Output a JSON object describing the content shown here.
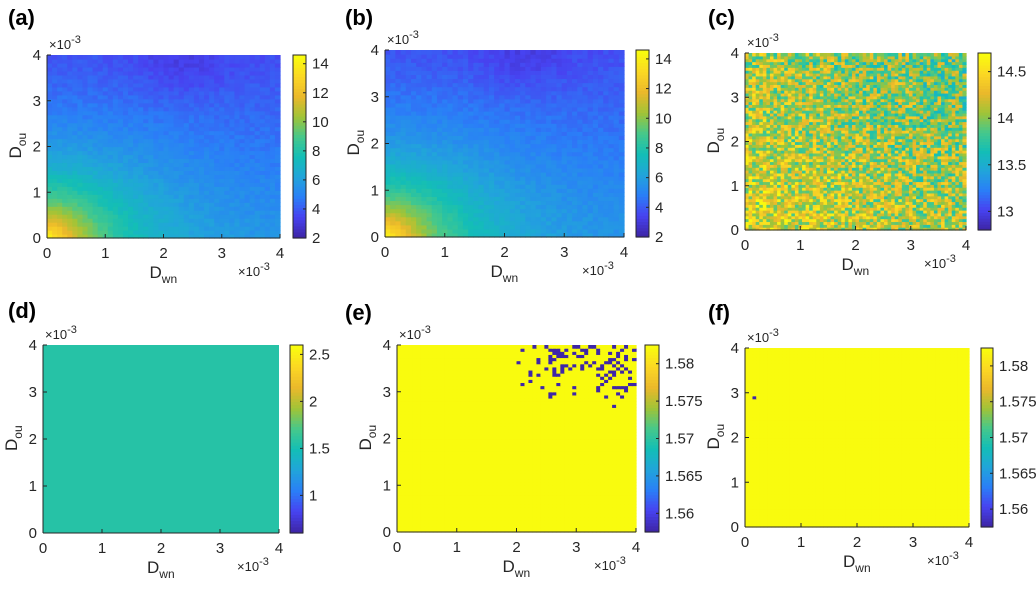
{
  "figure": {
    "panels": [
      {
        "label": "(a)",
        "xlabel_main": "D",
        "xlabel_sub": "wn",
        "ylabel_main": "D",
        "ylabel_sub": "ou",
        "x_multiplier": "×10",
        "x_exp": "-3",
        "y_multiplier": "×10",
        "y_exp": "-3"
      },
      {
        "label": "(b)",
        "xlabel_main": "D",
        "xlabel_sub": "wn",
        "ylabel_main": "D",
        "ylabel_sub": "ou",
        "x_multiplier": "×10",
        "x_exp": "-3",
        "y_multiplier": "×10",
        "y_exp": "-3"
      },
      {
        "label": "(c)",
        "xlabel_main": "D",
        "xlabel_sub": "wn",
        "ylabel_main": "D",
        "ylabel_sub": "ou",
        "x_multiplier": "×10",
        "x_exp": "-3",
        "y_multiplier": "×10",
        "y_exp": "-3"
      },
      {
        "label": "(d)",
        "xlabel_main": "D",
        "xlabel_sub": "wn",
        "ylabel_main": "D",
        "ylabel_sub": "ou",
        "x_multiplier": "×10",
        "x_exp": "-3",
        "y_multiplier": "×10",
        "y_exp": "-3"
      },
      {
        "label": "(e)",
        "xlabel_main": "D",
        "xlabel_sub": "wn",
        "ylabel_main": "D",
        "ylabel_sub": "ou",
        "x_multiplier": "×10",
        "x_exp": "-3",
        "y_multiplier": "×10",
        "y_exp": "-3"
      },
      {
        "label": "(f)",
        "xlabel_main": "D",
        "xlabel_sub": "wn",
        "ylabel_main": "D",
        "ylabel_sub": "ou",
        "x_multiplier": "×10",
        "x_exp": "-3",
        "y_multiplier": "×10",
        "y_exp": "-3"
      }
    ]
  },
  "colors": {
    "parula_stops": [
      "#3e26a8",
      "#4743f1",
      "#2a7ff7",
      "#21a5da",
      "#13beb6",
      "#46c88b",
      "#a0c437",
      "#eab82b",
      "#fbd724",
      "#f9fb0e"
    ]
  },
  "chart_data": [
    {
      "type": "heatmap",
      "panel": "(a)",
      "xlim": [
        0,
        4
      ],
      "ylim": [
        0,
        4
      ],
      "x_ticks": [
        "0",
        "1",
        "2",
        "3",
        "4"
      ],
      "y_ticks": [
        "0",
        "1",
        "2",
        "3",
        "4"
      ],
      "colorbar_ticks": [
        "2",
        "4",
        "6",
        "8",
        "10",
        "12",
        "14"
      ],
      "clim": [
        2,
        14.6
      ],
      "pattern": "gradient: highest (~13) near origin, decreasing to ~3 at top-middle"
    },
    {
      "type": "heatmap",
      "panel": "(b)",
      "xlim": [
        0,
        4
      ],
      "ylim": [
        0,
        4
      ],
      "x_ticks": [
        "0",
        "1",
        "2",
        "3",
        "4"
      ],
      "y_ticks": [
        "0",
        "1",
        "2",
        "3",
        "4"
      ],
      "colorbar_ticks": [
        "2",
        "4",
        "6",
        "8",
        "10",
        "12",
        "14"
      ],
      "clim": [
        2,
        14.6
      ],
      "pattern": "gradient: highest (~13) near origin, decreasing to ~3 at top-middle"
    },
    {
      "type": "heatmap",
      "panel": "(c)",
      "xlim": [
        0,
        4
      ],
      "ylim": [
        0,
        4
      ],
      "x_ticks": [
        "0",
        "1",
        "2",
        "3",
        "4"
      ],
      "y_ticks": [
        "0",
        "1",
        "2",
        "3",
        "4"
      ],
      "colorbar_ticks": [
        "13",
        "13.5",
        "14",
        "14.5"
      ],
      "clim": [
        12.8,
        14.7
      ],
      "pattern": "noisy, mostly ~14.3, lower (~13.6) toward top-right"
    },
    {
      "type": "heatmap",
      "panel": "(d)",
      "xlim": [
        0,
        4
      ],
      "ylim": [
        0,
        4
      ],
      "x_ticks": [
        "0",
        "1",
        "2",
        "3",
        "4"
      ],
      "y_ticks": [
        "0",
        "1",
        "2",
        "3",
        "4"
      ],
      "colorbar_ticks": [
        "1",
        "1.5",
        "2",
        "2.5"
      ],
      "clim": [
        0.6,
        2.6
      ],
      "pattern": "uniform ~1.57"
    },
    {
      "type": "heatmap",
      "panel": "(e)",
      "xlim": [
        0,
        4
      ],
      "ylim": [
        0,
        4
      ],
      "x_ticks": [
        "0",
        "1",
        "2",
        "3",
        "4"
      ],
      "y_ticks": [
        "0",
        "1",
        "2",
        "3",
        "4"
      ],
      "colorbar_ticks": [
        "1.56",
        "1.565",
        "1.57",
        "1.575",
        "1.58"
      ],
      "clim": [
        1.5575,
        1.5825
      ],
      "pattern": "uniform ~1.5825, scattered low-value (~1.5575) cells at D_wn 2-4, D_ou 2.7-4"
    },
    {
      "type": "heatmap",
      "panel": "(f)",
      "xlim": [
        0,
        4
      ],
      "ylim": [
        0,
        4
      ],
      "x_ticks": [
        "0",
        "1",
        "2",
        "3",
        "4"
      ],
      "y_ticks": [
        "0",
        "1",
        "2",
        "3",
        "4"
      ],
      "colorbar_ticks": [
        "1.56",
        "1.565",
        "1.57",
        "1.575",
        "1.58"
      ],
      "clim": [
        1.5575,
        1.5825
      ],
      "pattern": "uniform ~1.5825, one low cell near (0.15, 2.9)"
    }
  ]
}
